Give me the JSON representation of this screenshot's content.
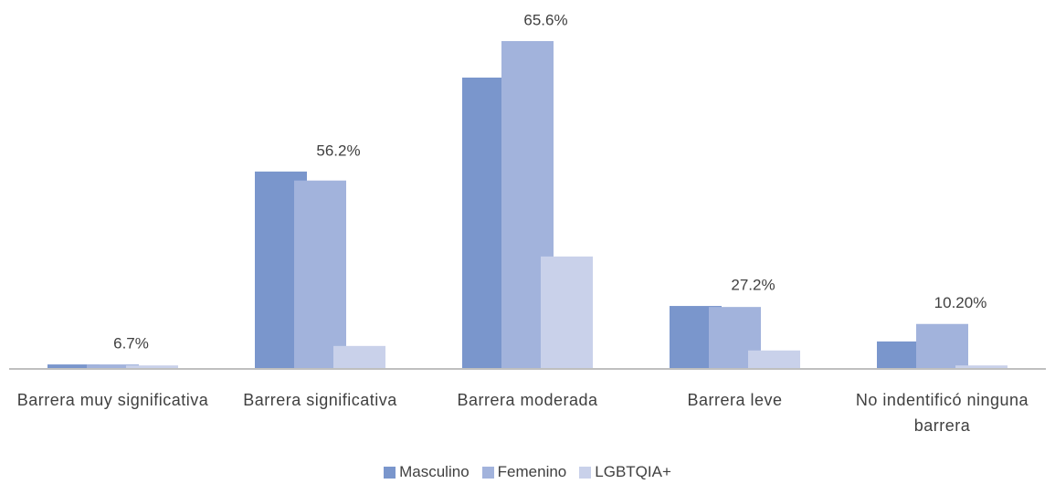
{
  "chart_data": {
    "type": "bar",
    "categories": [
      "Barrera muy significativa",
      "Barrera significativa",
      "Barrera moderada",
      "Barrera leve",
      "No indentificó ninguna barrera"
    ],
    "series": [
      {
        "name": "Masculino",
        "color": "#7a96cc",
        "values": [
          0.9,
          39.5,
          58.3,
          12.6,
          5.5
        ]
      },
      {
        "name": "Femenino",
        "color": "#a2b3dc",
        "values": [
          0.9,
          37.7,
          65.6,
          12.4,
          9.0
        ]
      },
      {
        "name": "LGBTQIA+",
        "color": "#c9d1ea",
        "values": [
          0.7,
          4.6,
          22.5,
          3.7,
          0.7
        ]
      }
    ],
    "annotations": [
      {
        "text": "6.7%",
        "category": 0
      },
      {
        "text": "56.2%",
        "category": 1
      },
      {
        "text": "65.6%",
        "category": 2
      },
      {
        "text": "27.2%",
        "category": 3
      },
      {
        "text": "10.20%",
        "category": 4
      }
    ],
    "legend": "bottom"
  }
}
